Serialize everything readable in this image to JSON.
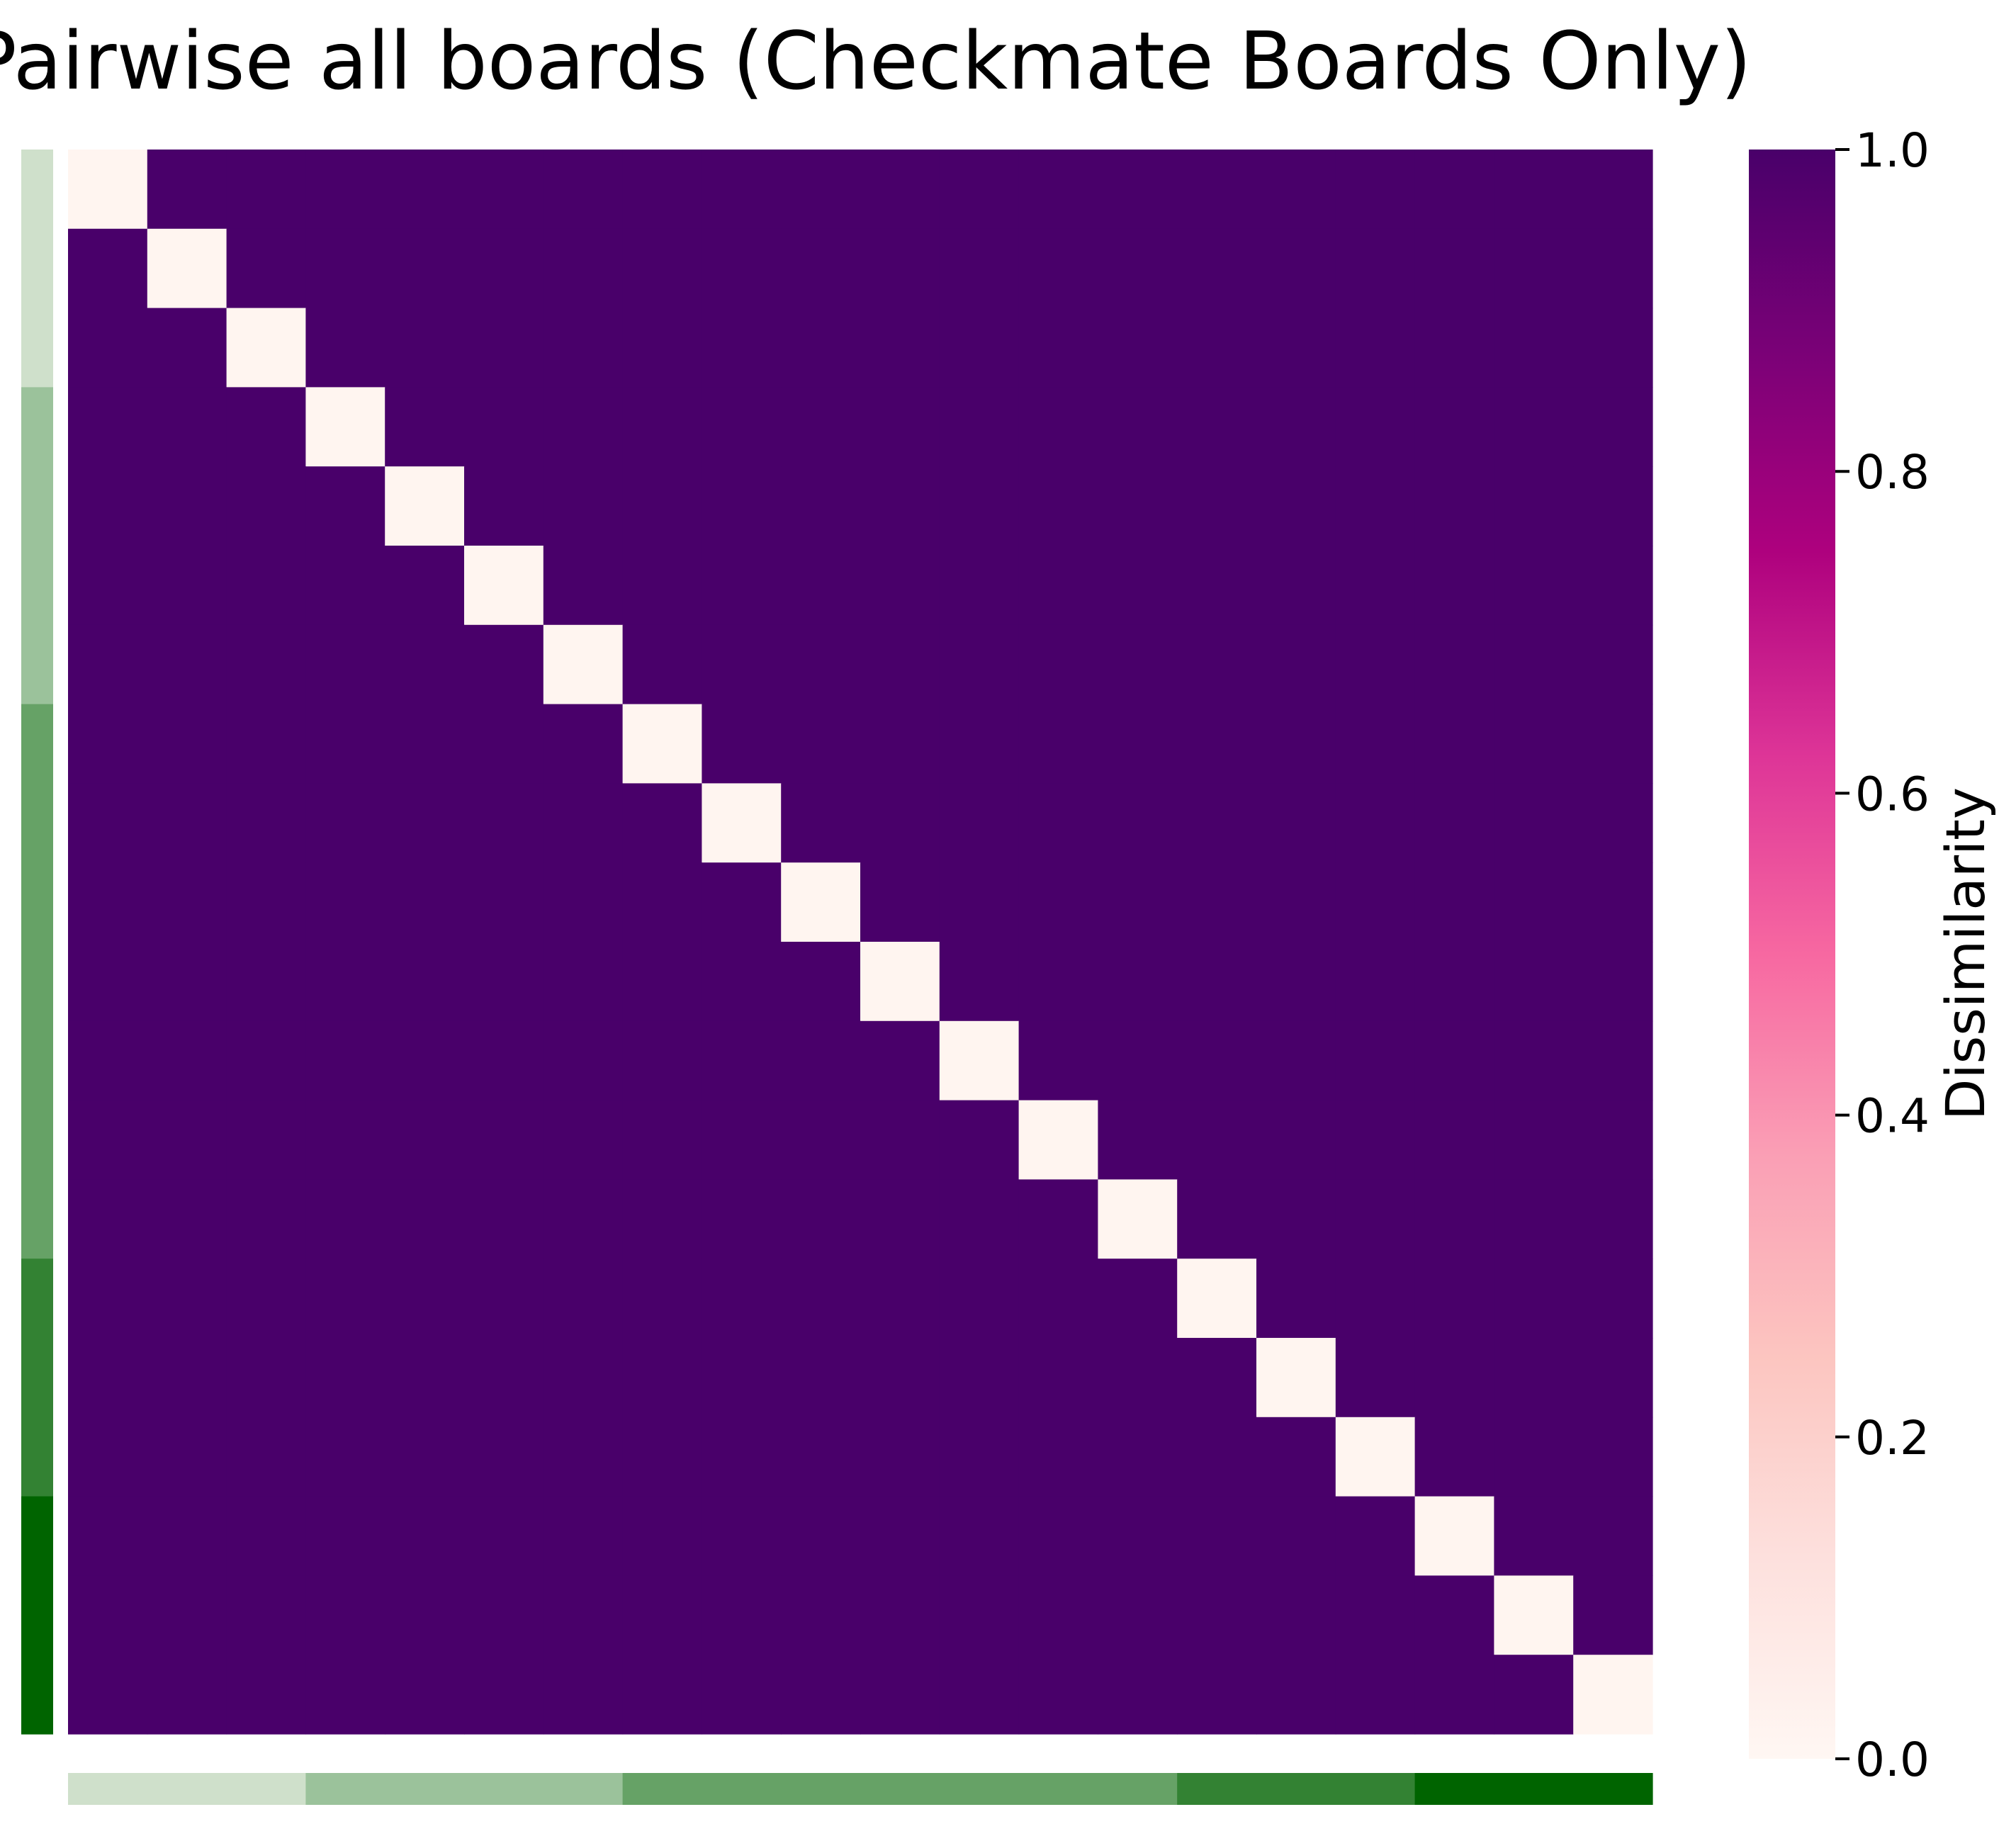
{
  "chart_data": {
    "type": "heatmap",
    "title": "Pairwise all boards (Checkmate Boards Only)",
    "n": 20,
    "diagonal_value": 0.0,
    "off_diagonal_value": 1.0,
    "colorbar": {
      "label": "Dissimilarity",
      "range": [
        0.0,
        1.0
      ],
      "ticks": [
        "0.0",
        "0.2",
        "0.4",
        "0.6",
        "0.8",
        "1.0"
      ],
      "colormap": "RdPu",
      "stops": [
        "#fff7f3",
        "#fde0dd",
        "#fcc5c0",
        "#fa9fb5",
        "#f768a1",
        "#dd3497",
        "#ae017e",
        "#7a0177",
        "#49006a"
      ]
    },
    "group_sizes": [
      3,
      4,
      7,
      3,
      3
    ],
    "group_colors": [
      "#cfe0cb",
      "#9bc29b",
      "#66a266",
      "#338233",
      "#006400"
    ],
    "cell_colors": {
      "low": "#fff5f0",
      "high": "#49006a"
    }
  }
}
